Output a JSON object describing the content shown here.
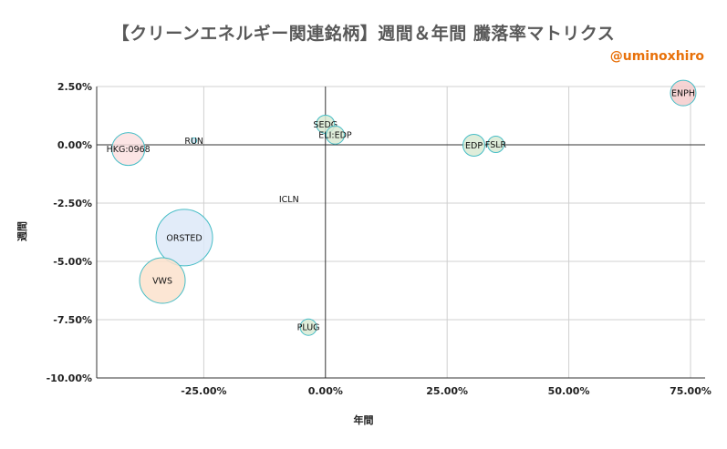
{
  "header": {
    "title": "【クリーンエネルギー関連銘柄】週間＆年間 騰落率マトリクス",
    "author": "@uminoxhiro"
  },
  "chart_data": {
    "type": "scatter",
    "title": "【クリーンエネルギー関連銘柄】週間＆年間 騰落率マトリクス",
    "xlabel": "年間",
    "ylabel": "週間",
    "xlim": [
      -0.47,
      0.78
    ],
    "ylim": [
      -0.1,
      0.025
    ],
    "x_ticks": [
      -0.25,
      0.0,
      0.25,
      0.5,
      0.75
    ],
    "x_tick_labels": [
      "-25.00%",
      "0.00%",
      "25.00%",
      "50.00%",
      "75.00%"
    ],
    "y_ticks": [
      0.025,
      0.0,
      -0.025,
      -0.05,
      -0.075,
      -0.1
    ],
    "y_tick_labels": [
      "2.50%",
      "0.00%",
      "-2.50%",
      "-5.00%",
      "-7.50%",
      "-10.00%"
    ],
    "grid": true,
    "points": [
      {
        "label": "ENPH",
        "x": 0.735,
        "y": 0.0222,
        "size": 14,
        "color": "#f4cccc"
      },
      {
        "label": "SEDG",
        "x": 0.0,
        "y": 0.0088,
        "size": 10,
        "color": "#d9ead3"
      },
      {
        "label": "ELI:EDP",
        "x": 0.02,
        "y": 0.0042,
        "size": 10,
        "color": "#d9ead3"
      },
      {
        "label": "RUN",
        "x": -0.27,
        "y": 0.0018,
        "size": 3,
        "color": "#d0e0f0"
      },
      {
        "label": "HKG:0968",
        "x": -0.405,
        "y": -0.0018,
        "size": 18,
        "color": "#fce1e1"
      },
      {
        "label": "EDP",
        "x": 0.305,
        "y": -0.0002,
        "size": 12,
        "color": "#d9ead3"
      },
      {
        "label": "FSLR",
        "x": 0.35,
        "y": 0.0002,
        "size": 9,
        "color": "#d9ead3"
      },
      {
        "label": "ICLN",
        "x": -0.075,
        "y": -0.0232,
        "size": 0,
        "color": "#ffffff"
      },
      {
        "label": "ORSTED",
        "x": -0.29,
        "y": -0.0398,
        "size": 31,
        "color": "#dde9f8"
      },
      {
        "label": "VWS",
        "x": -0.335,
        "y": -0.0582,
        "size": 25,
        "color": "#fce2cc"
      },
      {
        "label": "PLUG",
        "x": -0.035,
        "y": -0.0782,
        "size": 9,
        "color": "#d9ead3"
      }
    ]
  }
}
